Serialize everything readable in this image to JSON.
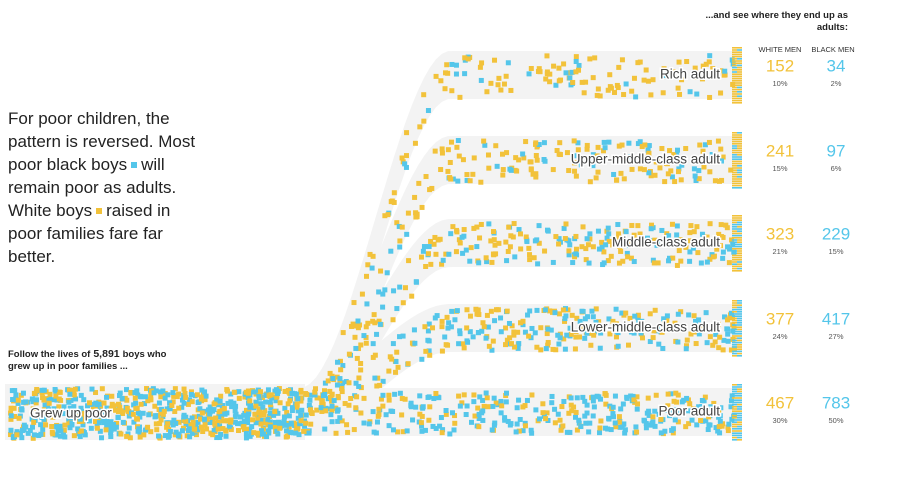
{
  "intro": [
    "For poor children, the pattern is reversed. Most poor black boys",
    "will remain poor as adults. White boys",
    "raised in poor families fare far better."
  ],
  "follow": {
    "before": "Follow the lives of",
    "count": "5,891",
    "after": "boys who grew up in poor families ..."
  },
  "start_label": "Grew up poor",
  "outcome_header": "...and see where they end up as adults:",
  "columns": [
    "WHITE MEN",
    "BLACK MEN"
  ],
  "colors": {
    "white": "#f2c23a",
    "black": "#54c6ea"
  },
  "outcomes": [
    {
      "label": "Rich adult",
      "white": "152",
      "white_pct": "10%",
      "black": "34",
      "black_pct": "2%"
    },
    {
      "label": "Upper-middle-class adult",
      "white": "241",
      "white_pct": "15%",
      "black": "97",
      "black_pct": "6%"
    },
    {
      "label": "Middle-class adult",
      "white": "323",
      "white_pct": "21%",
      "black": "229",
      "black_pct": "15%"
    },
    {
      "label": "Lower-middle-class adult",
      "white": "377",
      "white_pct": "24%",
      "black": "417",
      "black_pct": "27%"
    },
    {
      "label": "Poor adult",
      "white": "467",
      "white_pct": "30%",
      "black": "783",
      "black_pct": "50%"
    }
  ]
}
